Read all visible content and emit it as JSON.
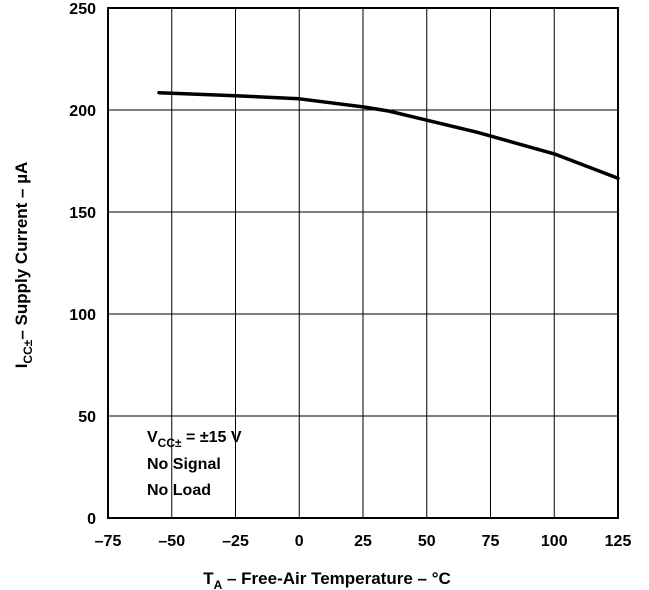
{
  "chart_data": {
    "type": "line",
    "x_axis": {
      "label_main": "T",
      "label_sub": "A",
      "label_rest": " – Free-Air Temperature – °C",
      "range": [
        -75,
        125
      ],
      "ticks": [
        -75,
        -50,
        -25,
        0,
        25,
        50,
        75,
        100,
        125
      ],
      "tick_labels": [
        "–75",
        "–50",
        "–25",
        "0",
        "25",
        "50",
        "75",
        "100",
        "125"
      ]
    },
    "y_axis": {
      "label_main": "I",
      "label_sub": "CC±",
      "label_rest": "– Supply Current – µA",
      "range": [
        0,
        250
      ],
      "ticks": [
        0,
        50,
        100,
        150,
        200,
        250
      ],
      "tick_labels": [
        "0",
        "50",
        "100",
        "150",
        "200",
        "250"
      ]
    },
    "grid": true,
    "series": [
      {
        "x": [
          -55,
          -25,
          0,
          25,
          35,
          50,
          70,
          100,
          125
        ],
        "y": [
          208.5,
          207,
          205.5,
          201.5,
          199.5,
          195,
          189,
          178.5,
          166.5
        ]
      }
    ],
    "annotation": {
      "line1_main": "V",
      "line1_sub": "CC±",
      "line1_rest": " = ±15 V",
      "line2": "No Signal",
      "line3": "No Load"
    }
  }
}
